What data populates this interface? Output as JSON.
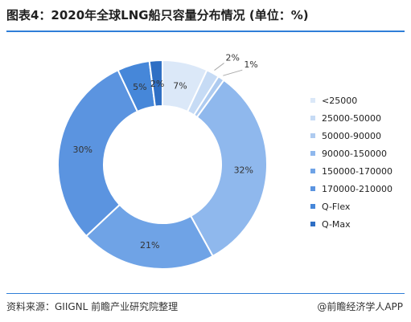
{
  "title": "图表4：2020年全球LNG船只容量分布情况 (单位：%)",
  "source": "资料来源：GIIGNL 前瞻产业研究院整理",
  "brand": "@前瞻经济学人APP",
  "chart_data": {
    "type": "pie",
    "variant": "donut",
    "legend_position": "right",
    "categories": [
      "<25000",
      "25000-50000",
      "50000-90000",
      "90000-150000",
      "150000-170000",
      "170000-210000",
      "Q-Flex",
      "Q-Max"
    ],
    "values": [
      7,
      2,
      1,
      32,
      21,
      30,
      5,
      2
    ],
    "labels": [
      "7%",
      "2%",
      "1%",
      "32%",
      "21%",
      "30%",
      "5%",
      "2%"
    ],
    "colors": [
      "#dbe8f8",
      "#c6dbf5",
      "#aecbf0",
      "#8fb8ed",
      "#6fa3e6",
      "#5b94e0",
      "#4687d9",
      "#2f6fc4"
    ]
  }
}
